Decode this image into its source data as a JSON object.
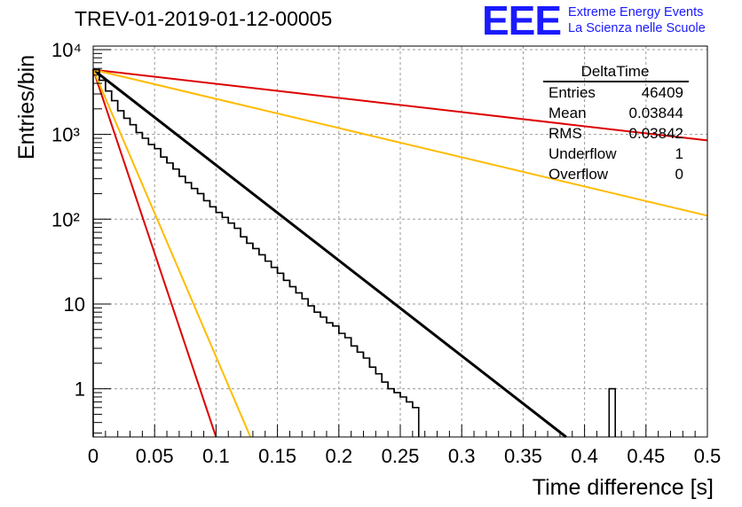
{
  "header": {
    "run_title": "TREV-01-2019-01-12-00005",
    "logo_letters": "EEE",
    "logo_line1": "Extreme Energy Events",
    "logo_line2": "La Scienza nelle Scuole",
    "logo_color": "#1a1aff"
  },
  "stats_box": {
    "name": "DeltaTime",
    "rows": [
      {
        "label": "Entries",
        "value": "46409"
      },
      {
        "label": "Mean",
        "value": "0.03844"
      },
      {
        "label": "RMS",
        "value": "0.03842"
      },
      {
        "label": "Underflow",
        "value": "1"
      },
      {
        "label": "Overflow",
        "value": "0"
      }
    ]
  },
  "chart_data": {
    "type": "line",
    "xlabel": "Time difference [s]",
    "ylabel": "Entries/bin",
    "xlim": [
      0,
      0.5
    ],
    "ylim": [
      0.27,
      11000
    ],
    "y_scale": "log",
    "grid": true,
    "x_ticks": [
      "0",
      "0.05",
      "0.1",
      "0.15",
      "0.2",
      "0.25",
      "0.3",
      "0.35",
      "0.4",
      "0.45",
      "0.5"
    ],
    "y_ticks": [
      "1",
      "10",
      "10²",
      "10³",
      "10⁴"
    ],
    "histogram": {
      "bin_width": 0.005,
      "color": "#000000",
      "values": [
        5800,
        4350,
        3250,
        2500,
        1900,
        1550,
        1300,
        1050,
        900,
        760,
        680,
        540,
        460,
        390,
        320,
        270,
        230,
        200,
        165,
        140,
        120,
        105,
        90,
        78,
        62,
        52,
        45,
        38,
        32,
        27,
        23,
        19,
        16,
        13.5,
        11.5,
        9.5,
        8,
        7,
        6,
        5.5,
        4.5,
        4,
        3.2,
        2.7,
        2.3,
        1.8,
        1.5,
        1.2,
        1,
        0.9,
        0.8,
        0.7,
        0.6,
        0,
        0,
        0,
        0,
        0,
        0,
        0,
        0,
        0,
        0,
        0,
        0,
        0,
        0,
        0,
        0,
        0,
        0,
        0,
        0,
        0,
        0,
        0,
        0,
        0,
        0,
        0,
        0,
        0,
        0,
        0,
        1,
        0,
        0,
        0,
        0,
        0,
        0,
        0,
        0,
        0,
        0,
        0,
        0,
        0,
        0,
        0
      ]
    },
    "series": [
      {
        "color": "#000000",
        "x": [
          0,
          0.385
        ],
        "y": [
          5800,
          0.27
        ]
      },
      {
        "color": "#dd0000",
        "x": [
          0,
          0.5
        ],
        "y": [
          5800,
          850
        ]
      },
      {
        "color": "#ffbb00",
        "x": [
          0,
          0.5
        ],
        "y": [
          5800,
          110
        ]
      },
      {
        "color": "#dd0000",
        "x": [
          0,
          0.1
        ],
        "y": [
          5800,
          0.27
        ]
      },
      {
        "color": "#ffbb00",
        "x": [
          0,
          0.128
        ],
        "y": [
          5800,
          0.27
        ]
      }
    ]
  }
}
